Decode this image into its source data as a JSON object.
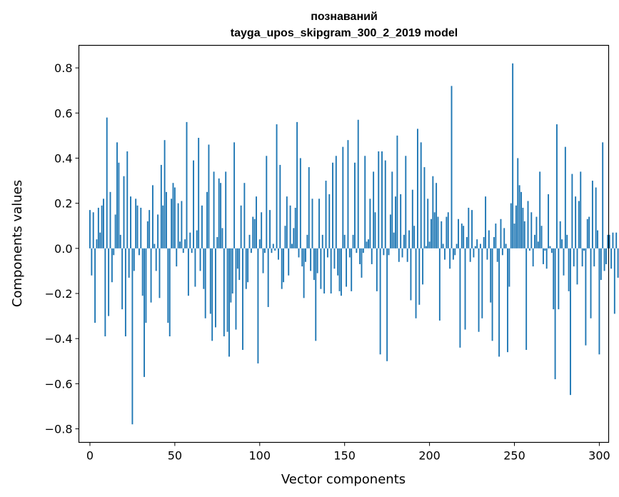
{
  "chart_data": {
    "type": "bar",
    "title_line1": "познаваний",
    "title_line2": "tayga_upos_skipgram_300_2_2019 model",
    "xlabel": "Vector components",
    "ylabel": "Components values",
    "xlim": [
      -6.5,
      305.5
    ],
    "ylim": [
      -0.86,
      0.9
    ],
    "xticks": [
      0,
      50,
      100,
      150,
      200,
      250,
      300
    ],
    "xtick_labels": [
      "0",
      "50",
      "100",
      "150",
      "200",
      "250",
      "300"
    ],
    "yticks": [
      -0.8,
      -0.6,
      -0.4,
      -0.2,
      0.0,
      0.2,
      0.4,
      0.6,
      0.8
    ],
    "ytick_labels": [
      "−0.8",
      "−0.6",
      "−0.4",
      "−0.2",
      "0.0",
      "0.2",
      "0.4",
      "0.6",
      "0.8"
    ],
    "bar_color": "#1f77b4",
    "values": [
      0.17,
      -0.12,
      0.16,
      -0.33,
      0.04,
      0.18,
      0.07,
      0.19,
      0.22,
      -0.39,
      0.58,
      -0.3,
      0.25,
      -0.15,
      -0.03,
      0.15,
      0.47,
      0.38,
      0.06,
      -0.27,
      0.32,
      -0.39,
      0.43,
      -0.13,
      0.23,
      -0.78,
      -0.1,
      0.22,
      0.19,
      -0.03,
      0.18,
      -0.21,
      -0.57,
      -0.33,
      0.12,
      0.17,
      -0.24,
      0.28,
      0.02,
      -0.1,
      0.15,
      -0.22,
      0.37,
      0.19,
      0.48,
      0.25,
      -0.33,
      -0.39,
      0.22,
      0.29,
      0.27,
      -0.08,
      0.2,
      0.03,
      0.21,
      -0.02,
      0.04,
      0.56,
      -0.21,
      0.07,
      -0.02,
      0.39,
      -0.17,
      0.08,
      0.49,
      -0.1,
      0.19,
      -0.18,
      -0.31,
      0.25,
      0.46,
      -0.29,
      -0.41,
      0.34,
      -0.35,
      0.05,
      0.31,
      0.29,
      0.09,
      -0.39,
      0.34,
      -0.37,
      -0.48,
      -0.24,
      -0.2,
      0.47,
      -0.36,
      -0.09,
      -0.14,
      0.19,
      -0.45,
      0.29,
      -0.18,
      -0.15,
      0.06,
      -0.02,
      0.14,
      0.13,
      0.23,
      -0.51,
      0.04,
      0.16,
      -0.11,
      -0.02,
      0.41,
      -0.26,
      0.17,
      -0.02,
      0.02,
      -0.01,
      0.55,
      -0.05,
      0.37,
      -0.18,
      -0.15,
      0.1,
      0.23,
      -0.12,
      0.19,
      0.02,
      0.09,
      0.18,
      0.56,
      -0.04,
      0.4,
      -0.08,
      -0.22,
      -0.06,
      0.06,
      0.36,
      -0.1,
      0.22,
      -0.14,
      -0.41,
      -0.11,
      0.22,
      -0.18,
      0.06,
      -0.2,
      0.3,
      -0.04,
      0.24,
      -0.2,
      0.38,
      -0.09,
      0.41,
      -0.12,
      -0.19,
      -0.21,
      0.45,
      0.06,
      -0.17,
      0.48,
      -0.04,
      -0.19,
      0.06,
      0.38,
      -0.02,
      0.57,
      -0.07,
      -0.13,
      -0.02,
      0.41,
      0.03,
      0.04,
      0.22,
      -0.07,
      0.34,
      0.16,
      -0.19,
      0.43,
      -0.47,
      0.43,
      -0.03,
      0.39,
      -0.5,
      -0.03,
      0.15,
      0.34,
      0.07,
      0.23,
      0.5,
      -0.06,
      0.24,
      -0.04,
      0.06,
      0.41,
      -0.06,
      0.08,
      -0.23,
      0.26,
      0.1,
      -0.31,
      0.53,
      -0.25,
      0.47,
      -0.16,
      0.36,
      0.01,
      0.22,
      0.03,
      0.13,
      0.32,
      0.16,
      0.29,
      0.14,
      -0.32,
      0.12,
      0.02,
      -0.05,
      0.14,
      0.16,
      -0.09,
      0.72,
      -0.05,
      -0.03,
      0.02,
      0.13,
      -0.44,
      0.11,
      0.1,
      -0.36,
      0.05,
      0.18,
      -0.06,
      0.17,
      -0.04,
      0.01,
      0.04,
      -0.37,
      0.02,
      -0.31,
      0.05,
      0.23,
      -0.05,
      0.08,
      -0.24,
      -0.41,
      0.05,
      0.11,
      -0.06,
      -0.48,
      0.13,
      -0.03,
      0.09,
      0.02,
      -0.46,
      -0.17,
      0.2,
      0.82,
      0.11,
      0.19,
      0.4,
      0.28,
      0.25,
      0.18,
      0.12,
      -0.45,
      0.21,
      -0.01,
      0.16,
      -0.08,
      0.06,
      0.14,
      0.03,
      0.34,
      0.1,
      -0.07,
      -0.01,
      -0.09,
      0.24,
      0.01,
      -0.02,
      -0.27,
      -0.58,
      0.55,
      -0.27,
      0.12,
      0.04,
      -0.12,
      0.45,
      0.06,
      -0.19,
      -0.65,
      0.33,
      -0.08,
      0.23,
      -0.16,
      0.21,
      0.34,
      -0.08,
      -0.01,
      -0.43,
      0.13,
      0.14,
      -0.31,
      0.3,
      -0.08,
      0.27,
      0.08,
      -0.47,
      -0.14,
      0.47,
      -0.1,
      -0.07,
      0.06,
      0.06,
      -0.09,
      0.07,
      -0.29,
      0.07,
      -0.13
    ]
  }
}
